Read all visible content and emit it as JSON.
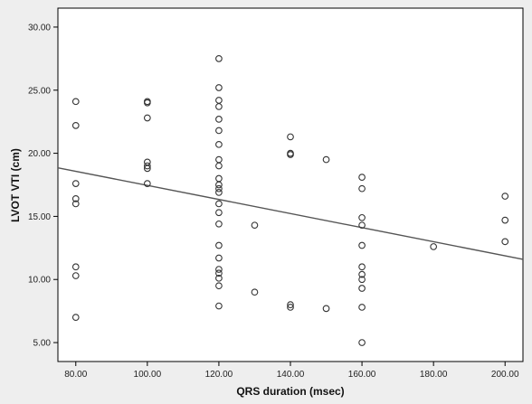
{
  "chart_data": {
    "type": "scatter",
    "xlabel": "QRS duration (msec)",
    "ylabel": "LVOT VTI (cm)",
    "xlim": [
      75,
      205
    ],
    "ylim": [
      3.5,
      31.5
    ],
    "x_ticks": [
      80,
      100,
      120,
      140,
      160,
      180,
      200
    ],
    "y_ticks": [
      5,
      10,
      15,
      20,
      25,
      30
    ],
    "x_tick_labels": [
      "80.00",
      "100.00",
      "120.00",
      "140.00",
      "160.00",
      "180.00",
      "200.00"
    ],
    "y_tick_labels": [
      "5.00",
      "10.00",
      "15.00",
      "20.00",
      "25.00",
      "30.00"
    ],
    "grid": false,
    "points": [
      {
        "x": 80,
        "y": 24.1
      },
      {
        "x": 80,
        "y": 22.2
      },
      {
        "x": 80,
        "y": 17.6
      },
      {
        "x": 80,
        "y": 16.4
      },
      {
        "x": 80,
        "y": 16.0
      },
      {
        "x": 80,
        "y": 11.0
      },
      {
        "x": 80,
        "y": 10.3
      },
      {
        "x": 80,
        "y": 7.0
      },
      {
        "x": 100,
        "y": 24.1
      },
      {
        "x": 100,
        "y": 24.0
      },
      {
        "x": 100,
        "y": 22.8
      },
      {
        "x": 100,
        "y": 19.3
      },
      {
        "x": 100,
        "y": 19.0
      },
      {
        "x": 100,
        "y": 18.8
      },
      {
        "x": 100,
        "y": 17.6
      },
      {
        "x": 120,
        "y": 27.5
      },
      {
        "x": 120,
        "y": 25.2
      },
      {
        "x": 120,
        "y": 24.2
      },
      {
        "x": 120,
        "y": 23.7
      },
      {
        "x": 120,
        "y": 22.7
      },
      {
        "x": 120,
        "y": 21.8
      },
      {
        "x": 120,
        "y": 20.7
      },
      {
        "x": 120,
        "y": 19.5
      },
      {
        "x": 120,
        "y": 19.0
      },
      {
        "x": 120,
        "y": 18.0
      },
      {
        "x": 120,
        "y": 17.5
      },
      {
        "x": 120,
        "y": 17.2
      },
      {
        "x": 120,
        "y": 16.9
      },
      {
        "x": 120,
        "y": 16.0
      },
      {
        "x": 120,
        "y": 15.3
      },
      {
        "x": 120,
        "y": 14.4
      },
      {
        "x": 120,
        "y": 12.7
      },
      {
        "x": 120,
        "y": 11.7
      },
      {
        "x": 120,
        "y": 10.8
      },
      {
        "x": 120,
        "y": 10.5
      },
      {
        "x": 120,
        "y": 10.1
      },
      {
        "x": 120,
        "y": 9.5
      },
      {
        "x": 120,
        "y": 7.9
      },
      {
        "x": 130,
        "y": 14.3
      },
      {
        "x": 130,
        "y": 9.0
      },
      {
        "x": 140,
        "y": 21.3
      },
      {
        "x": 140,
        "y": 20.0
      },
      {
        "x": 140,
        "y": 19.9
      },
      {
        "x": 140,
        "y": 8.0
      },
      {
        "x": 140,
        "y": 7.8
      },
      {
        "x": 150,
        "y": 19.5
      },
      {
        "x": 150,
        "y": 7.7
      },
      {
        "x": 160,
        "y": 18.1
      },
      {
        "x": 160,
        "y": 17.2
      },
      {
        "x": 160,
        "y": 14.9
      },
      {
        "x": 160,
        "y": 14.3
      },
      {
        "x": 160,
        "y": 12.7
      },
      {
        "x": 160,
        "y": 11.0
      },
      {
        "x": 160,
        "y": 10.4
      },
      {
        "x": 160,
        "y": 10.0
      },
      {
        "x": 160,
        "y": 9.3
      },
      {
        "x": 160,
        "y": 7.8
      },
      {
        "x": 160,
        "y": 5.0
      },
      {
        "x": 180,
        "y": 12.6
      },
      {
        "x": 200,
        "y": 16.6
      },
      {
        "x": 200,
        "y": 14.7
      },
      {
        "x": 200,
        "y": 13.0
      }
    ],
    "fit_line": {
      "x": [
        75,
        205
      ],
      "y": [
        18.85,
        11.6
      ]
    },
    "colors": {
      "figure_background": "#eeeeee",
      "plot_background": "#ffffff",
      "marker": "#333333",
      "fit_line": "#555555"
    }
  }
}
